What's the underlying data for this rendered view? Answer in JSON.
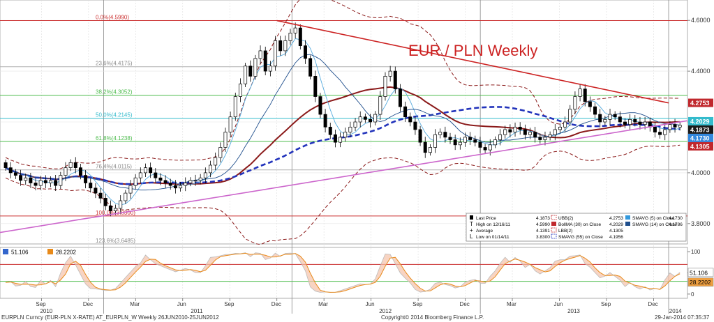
{
  "chart_data": {
    "type": "candlestick",
    "title": "EUR / PLN Weekly",
    "price_axis": {
      "ylim": [
        3.72,
        4.68
      ],
      "ticks": [
        "4.6000",
        "4.4000",
        "4.2000",
        "4.0000",
        "3.8000"
      ],
      "tick_values": [
        4.6,
        4.4,
        4.2,
        4.0,
        3.8
      ]
    },
    "x_axis": {
      "range": [
        2010.45,
        2014.1
      ],
      "months": [
        {
          "label": "Sep",
          "t": 2010.67
        },
        {
          "label": "Dec",
          "t": 2010.92
        },
        {
          "label": "Mar",
          "t": 2011.17
        },
        {
          "label": "Jun",
          "t": 2011.42
        },
        {
          "label": "Sep",
          "t": 2011.67
        },
        {
          "label": "Dec",
          "t": 2011.92
        },
        {
          "label": "Mar",
          "t": 2012.17
        },
        {
          "label": "Jun",
          "t": 2012.42
        },
        {
          "label": "Sep",
          "t": 2012.67
        },
        {
          "label": "Dec",
          "t": 2012.92
        },
        {
          "label": "Mar",
          "t": 2013.17
        },
        {
          "label": "Jun",
          "t": 2013.42
        },
        {
          "label": "Sep",
          "t": 2013.67
        },
        {
          "label": "Dec",
          "t": 2013.92
        }
      ],
      "years": [
        {
          "label": "2010",
          "t": 2010.7
        },
        {
          "label": "2011",
          "t": 2011.5
        },
        {
          "label": "2012",
          "t": 2012.5
        },
        {
          "label": "2013",
          "t": 2013.5
        },
        {
          "label": "2014",
          "t": 2014.04
        }
      ],
      "year_boundaries": [
        2011.0,
        2012.0,
        2013.0,
        2014.0
      ]
    },
    "fib_levels": [
      {
        "label": "0.0%(4.5990)",
        "value": 4.599,
        "color": "#cc3333"
      },
      {
        "label": "23.6%(4.4175)",
        "value": 4.4175,
        "color": "#b0b0b0"
      },
      {
        "label": "38.2%(4.3052)",
        "value": 4.3052,
        "color": "#4cbb4c"
      },
      {
        "label": "50.0%(4.2145)",
        "value": 4.2145,
        "color": "#33bbcc"
      },
      {
        "label": "61.8%(4.1238)",
        "value": 4.1238,
        "color": "#4cbb4c"
      },
      {
        "label": "76.4%(4.0115)",
        "value": 4.0115,
        "color": "#b0b0b0"
      },
      {
        "label": "100.0%(3.8300)",
        "value": 3.83,
        "color": "#cc3333"
      },
      {
        "label": "123.6%(3.6485)",
        "value": 3.6485,
        "color": "#b0b0b0"
      }
    ],
    "right_labels": [
      {
        "text": "4.2753",
        "value": 4.2753,
        "bg": "#c0282d",
        "fg": "#ffffff"
      },
      {
        "text": "4.2029",
        "value": 4.2029,
        "bg": "#33bbcc",
        "fg": "#ffffff"
      },
      {
        "text": "4.1873",
        "value": 4.1873,
        "bg": "#1a1a1a",
        "fg": "#ffffff"
      },
      {
        "text": "4.1730",
        "value": 4.173,
        "bg": "#3388dd",
        "fg": "#ffffff"
      },
      {
        "text": "4.1305",
        "value": 4.1305,
        "bg": "#c0282d",
        "fg": "#ffffff"
      }
    ],
    "trendlines": [
      {
        "name": "resistance",
        "color": "#cc2222",
        "points": [
          [
            2011.92,
            4.599
          ],
          [
            2014.0,
            4.275
          ]
        ]
      },
      {
        "name": "support",
        "color": "#cc66cc",
        "points": [
          [
            2010.45,
            3.765
          ],
          [
            2014.1,
            4.205
          ]
        ]
      }
    ],
    "legend": [
      {
        "symbol": "candle",
        "color": "#000000",
        "text": "Last Price",
        "value": "4.1873"
      },
      {
        "symbol": "T",
        "color": "#000000",
        "text": "High on 12/16/11",
        "value": "4.5990"
      },
      {
        "symbol": "plus",
        "color": "#000000",
        "text": "Average",
        "value": "4.1391"
      },
      {
        "symbol": "L",
        "color": "#000000",
        "text": "Low on 01/14/11",
        "value": "3.8300"
      },
      {
        "symbol": "dash",
        "color": "#c0282d",
        "text": "UBB(2)",
        "value": "4.2753"
      },
      {
        "symbol": "solid",
        "color": "#c0282d",
        "text": "BollMA (30) on Close",
        "value": "4.2029"
      },
      {
        "symbol": "dash",
        "color": "#c0282d",
        "text": "LBB(2)",
        "value": "4.1305"
      },
      {
        "symbol": "dashblue",
        "color": "#2233bb",
        "text": "SMAVG (55) on Close",
        "value": "4.1956"
      },
      {
        "symbol": "solid",
        "color": "#3399dd",
        "text": "SMAVG (5) on Close",
        "value": "4.1730"
      },
      {
        "symbol": "solid",
        "color": "#1f4e8c",
        "text": "SMAVG (14) on Close",
        "value": "4.1786"
      }
    ],
    "closes": [
      4.02,
      4.0,
      3.99,
      3.97,
      3.98,
      3.96,
      3.95,
      3.97,
      3.96,
      3.97,
      3.95,
      3.99,
      4.02,
      4.04,
      4.02,
      3.99,
      3.96,
      3.94,
      3.92,
      3.9,
      3.87,
      3.85,
      3.86,
      3.89,
      3.92,
      3.95,
      3.98,
      4.0,
      4.02,
      4.0,
      3.98,
      3.97,
      3.96,
      3.95,
      3.94,
      3.95,
      3.96,
      3.97,
      3.97,
      3.98,
      4.0,
      4.03,
      4.06,
      4.1,
      4.16,
      4.22,
      4.3,
      4.35,
      4.42,
      4.38,
      4.45,
      4.48,
      4.4,
      4.42,
      4.52,
      4.48,
      4.52,
      4.55,
      4.57,
      4.5,
      4.45,
      4.38,
      4.3,
      4.23,
      4.18,
      4.15,
      4.12,
      4.14,
      4.16,
      4.18,
      4.2,
      4.22,
      4.21,
      4.2,
      4.23,
      4.3,
      4.38,
      4.4,
      4.33,
      4.26,
      4.22,
      4.2,
      4.17,
      4.12,
      4.08,
      4.1,
      4.15,
      4.16,
      4.14,
      4.13,
      4.11,
      4.12,
      4.14,
      4.13,
      4.12,
      4.1,
      4.09,
      4.11,
      4.13,
      4.15,
      4.17,
      4.16,
      4.18,
      4.17,
      4.15,
      4.16,
      4.14,
      4.13,
      4.14,
      4.15,
      4.17,
      4.18,
      4.2,
      4.25,
      4.3,
      4.33,
      4.28,
      4.26,
      4.23,
      4.2,
      4.21,
      4.23,
      4.22,
      4.2,
      4.19,
      4.21,
      4.2,
      4.19,
      4.2,
      4.18,
      4.16,
      4.15,
      4.17,
      4.19,
      4.18,
      4.1873
    ],
    "oscillator": {
      "ylim": [
        -10,
        110
      ],
      "ticks": [
        "100",
        "50",
        "0"
      ],
      "tick_values": [
        100,
        50,
        0
      ],
      "levels": [
        {
          "value": 70,
          "color": "#cc3333"
        },
        {
          "value": 30,
          "color": "#4cbb4c"
        }
      ],
      "header_values": [
        {
          "text": "51.106",
          "color": "#3366cc"
        },
        {
          "text": "28.2202",
          "color": "#e88a1a"
        }
      ],
      "right_labels": [
        {
          "text": "51.106",
          "value": 51.106,
          "bg": "#ffffff",
          "fg": "#000000"
        },
        {
          "text": "28.2202",
          "value": 28.2202,
          "bg": "#f0a040",
          "fg": "#000000"
        }
      ]
    },
    "footer": {
      "left": "EURPLN Curncy (EUR-PLN X-RATE) AT_EURPLN_W  Weekly 26JUN2010-25JUN2012",
      "center": "Copyright© 2014 Bloomberg Finance L.P.",
      "right": "29-Jan-2014 07:35:37"
    }
  }
}
